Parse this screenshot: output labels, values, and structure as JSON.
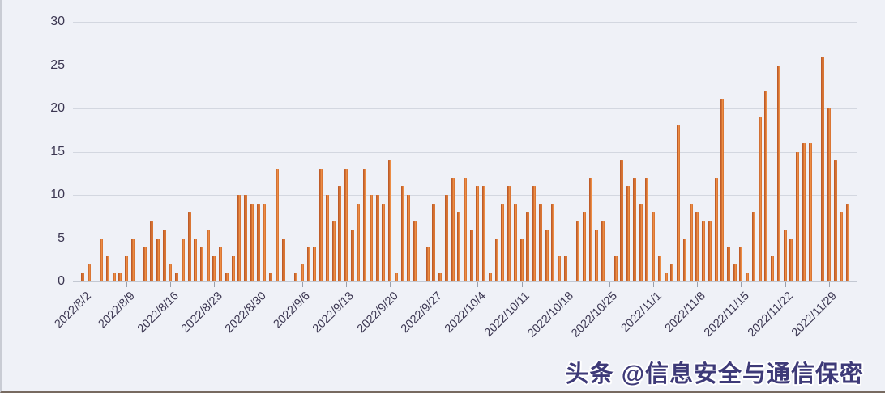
{
  "page": {
    "background": "#eff1f7",
    "gridline_color": "#d3d7e0",
    "axis_label_color": "#3c3752"
  },
  "watermark": {
    "text": "头条 @信息安全与通信保密",
    "color": "#3e3a78",
    "outline_color": "#ffffff"
  },
  "chart_data": {
    "type": "bar",
    "title": "",
    "xlabel": "",
    "ylabel": "",
    "ylim": [
      0,
      30
    ],
    "y_ticks": [
      0,
      5,
      10,
      15,
      20,
      25,
      30
    ],
    "grid": true,
    "legend": false,
    "bar_color": "#ed8033",
    "bar_edge_color": "#bf5c28",
    "x_tick_interval": 7,
    "x_tick_labels": [
      "2022/8/2",
      "2022/8/9",
      "2022/8/16",
      "2022/8/23",
      "2022/8/30",
      "2022/9/6",
      "2022/9/13",
      "2022/9/20",
      "2022/9/27",
      "2022/10/4",
      "2022/10/11",
      "2022/10/18",
      "2022/10/25",
      "2022/11/1",
      "2022/11/8",
      "2022/11/15",
      "2022/11/22",
      "2022/11/29"
    ],
    "values": [
      1,
      2,
      0,
      5,
      3,
      1,
      1,
      3,
      5,
      0,
      4,
      7,
      5,
      6,
      2,
      1,
      5,
      8,
      5,
      4,
      6,
      3,
      4,
      1,
      3,
      10,
      10,
      9,
      9,
      9,
      1,
      13,
      5,
      0,
      1,
      2,
      4,
      4,
      13,
      10,
      7,
      11,
      13,
      6,
      9,
      13,
      10,
      10,
      9,
      14,
      1,
      11,
      10,
      7,
      0,
      4,
      9,
      1,
      10,
      12,
      8,
      12,
      6,
      11,
      11,
      1,
      5,
      9,
      11,
      9,
      5,
      8,
      11,
      9,
      6,
      9,
      3,
      3,
      0,
      7,
      8,
      12,
      6,
      7,
      0,
      3,
      14,
      11,
      12,
      9,
      12,
      8,
      3,
      1,
      2,
      18,
      5,
      9,
      8,
      7,
      7,
      12,
      21,
      4,
      2,
      4,
      1,
      8,
      19,
      22,
      3,
      25,
      6,
      5,
      15,
      16,
      16,
      0,
      26,
      20,
      14,
      8,
      9
    ]
  }
}
